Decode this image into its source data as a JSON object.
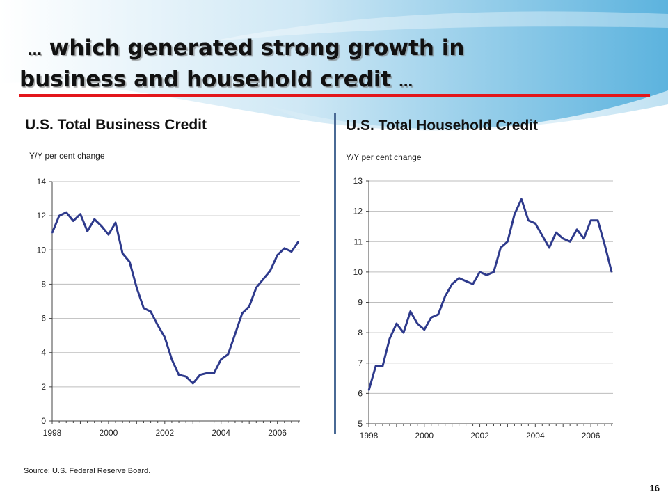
{
  "slide": {
    "title_line1_prefix": "…",
    "title_line1_text": "which generated strong growth in",
    "title_line2_text": "business and household credit",
    "title_line2_suffix": "…",
    "source": "Source: U.S. Federal Reserve Board.",
    "page_number": "16",
    "accent_color": "#e3161b",
    "line_color": "#2e3a8c"
  },
  "chart_data": [
    {
      "type": "line",
      "title": "U.S. Total Business Credit",
      "ylabel": "Y/Y per cent change",
      "xlabel": "",
      "ylim": [
        0,
        14
      ],
      "yticks": [
        0,
        2,
        4,
        6,
        8,
        10,
        12,
        14
      ],
      "xlim": [
        1998,
        2006.8
      ],
      "xticks": [
        1998,
        2000,
        2002,
        2004,
        2006
      ],
      "grid": true,
      "series": [
        {
          "x": [
            1998.0,
            1998.25,
            1998.5,
            1998.75,
            1999.0,
            1999.25,
            1999.5,
            1999.75,
            2000.0,
            2000.25,
            2000.5,
            2000.75,
            2001.0,
            2001.25,
            2001.5,
            2001.75,
            2002.0,
            2002.25,
            2002.5,
            2002.75,
            2003.0,
            2003.25,
            2003.5,
            2003.75,
            2004.0,
            2004.25,
            2004.5,
            2004.75,
            2005.0,
            2005.25,
            2005.5,
            2005.75,
            2006.0,
            2006.25,
            2006.5,
            2006.75
          ],
          "y": [
            11.0,
            12.0,
            12.2,
            11.7,
            12.1,
            11.1,
            11.8,
            11.4,
            10.9,
            11.6,
            9.8,
            9.3,
            7.8,
            6.6,
            6.4,
            5.6,
            4.9,
            3.6,
            2.7,
            2.6,
            2.2,
            2.7,
            2.8,
            2.8,
            3.6,
            3.9,
            5.1,
            6.3,
            6.7,
            7.8,
            8.3,
            8.8,
            9.7,
            10.1,
            9.9,
            10.5
          ]
        }
      ]
    },
    {
      "type": "line",
      "title": "U.S. Total Household Credit",
      "ylabel": "Y/Y per cent change",
      "xlabel": "",
      "ylim": [
        5,
        13
      ],
      "yticks": [
        5,
        6,
        7,
        8,
        9,
        10,
        11,
        12,
        13
      ],
      "xlim": [
        1998,
        2006.8
      ],
      "xticks": [
        1998,
        2000,
        2002,
        2004,
        2006
      ],
      "grid": true,
      "series": [
        {
          "x": [
            1998.0,
            1998.25,
            1998.5,
            1998.75,
            1999.0,
            1999.25,
            1999.5,
            1999.75,
            2000.0,
            2000.25,
            2000.5,
            2000.75,
            2001.0,
            2001.25,
            2001.5,
            2001.75,
            2002.0,
            2002.25,
            2002.5,
            2002.75,
            2003.0,
            2003.25,
            2003.5,
            2003.75,
            2004.0,
            2004.25,
            2004.5,
            2004.75,
            2005.0,
            2005.25,
            2005.5,
            2005.75,
            2006.0,
            2006.25,
            2006.5,
            2006.75
          ],
          "y": [
            6.1,
            6.9,
            6.9,
            7.8,
            8.3,
            8.0,
            8.7,
            8.3,
            8.1,
            8.5,
            8.6,
            9.2,
            9.6,
            9.8,
            9.7,
            9.6,
            10.0,
            9.9,
            10.0,
            10.8,
            11.0,
            11.9,
            12.4,
            11.7,
            11.6,
            11.2,
            10.8,
            11.3,
            11.1,
            11.0,
            11.4,
            11.1,
            11.7,
            11.7,
            10.9,
            10.0
          ]
        }
      ]
    }
  ]
}
